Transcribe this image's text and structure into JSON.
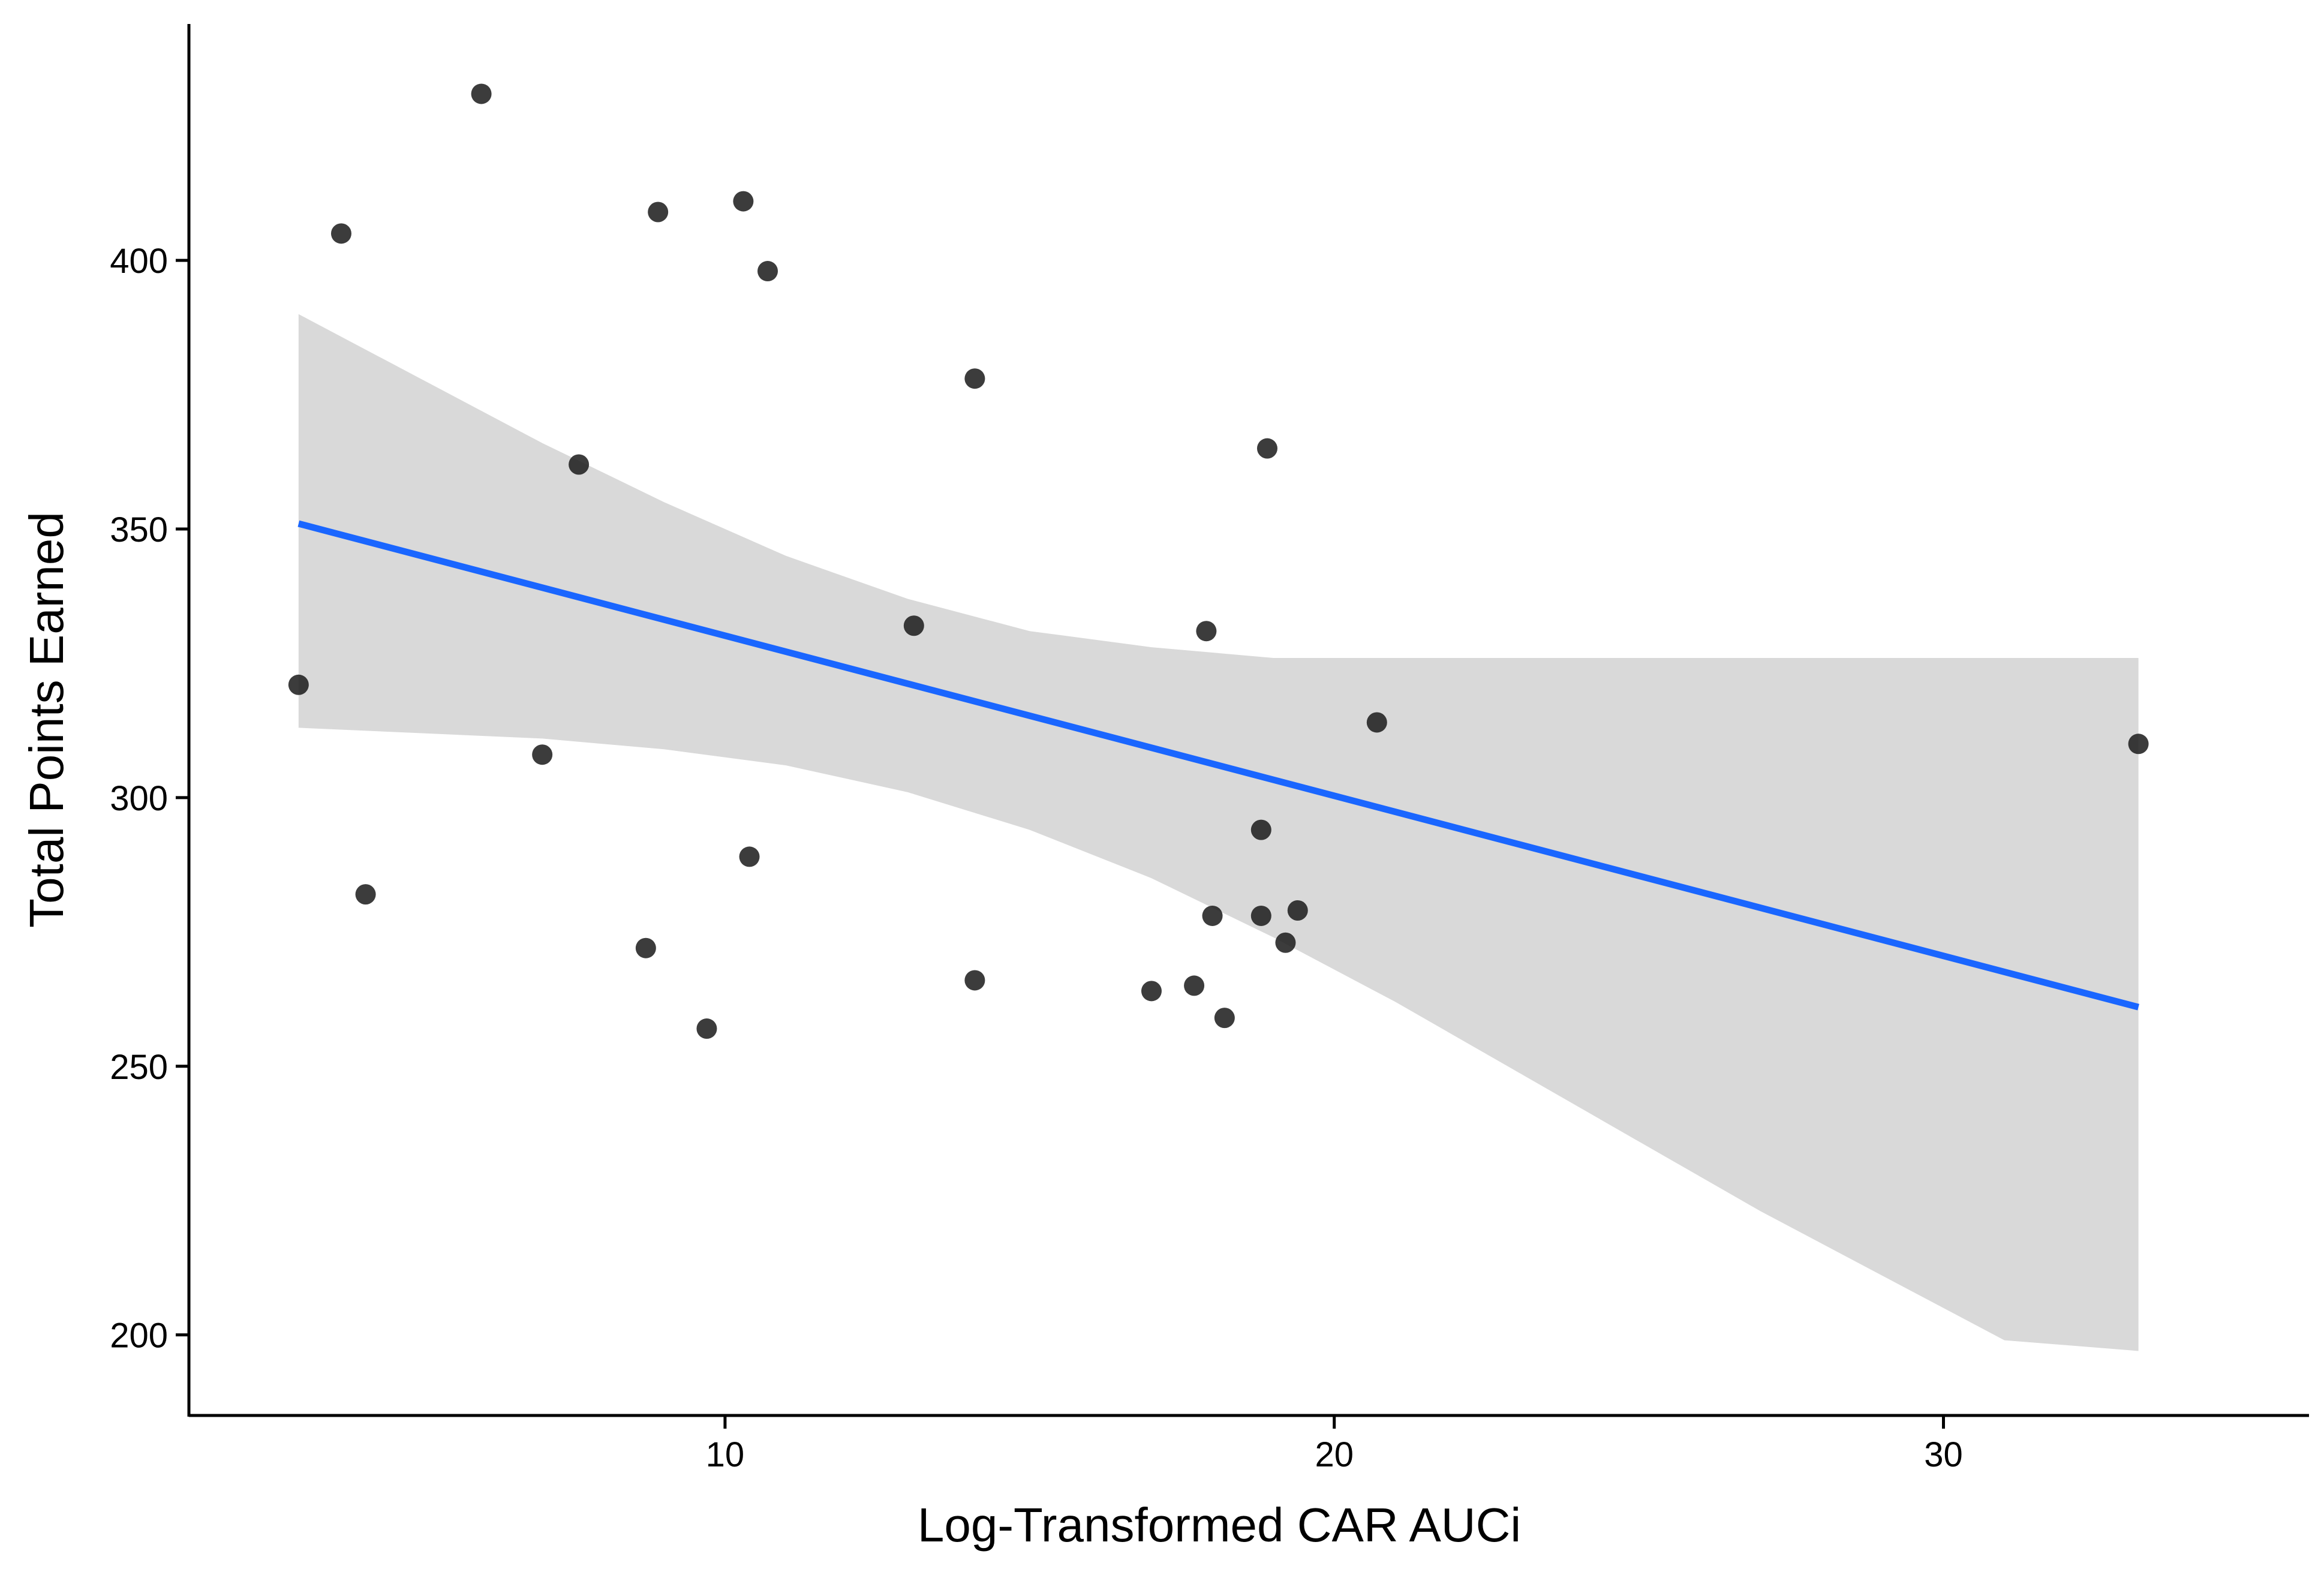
{
  "chart_data": {
    "type": "scatter",
    "title": "",
    "xlabel": "Log-Transformed CAR AUCi",
    "ylabel": "Total Points Earned",
    "xlim": [
      1.2,
      36.0
    ],
    "ylim": [
      185,
      444
    ],
    "xticks": [
      10,
      20,
      30
    ],
    "yticks": [
      200,
      250,
      300,
      350,
      400
    ],
    "grid": false,
    "legend": "none",
    "colors": {
      "points": "#1a1a1a",
      "fit_line": "#1a66ff",
      "confidence_band": "#d9d9d9",
      "axis": "#000000"
    },
    "points": [
      {
        "x": 6.0,
        "y": 431
      },
      {
        "x": 3.7,
        "y": 405
      },
      {
        "x": 8.9,
        "y": 409
      },
      {
        "x": 10.3,
        "y": 411
      },
      {
        "x": 10.7,
        "y": 398
      },
      {
        "x": 14.1,
        "y": 378
      },
      {
        "x": 18.9,
        "y": 365
      },
      {
        "x": 7.6,
        "y": 362
      },
      {
        "x": 13.1,
        "y": 332
      },
      {
        "x": 17.9,
        "y": 331
      },
      {
        "x": 3.0,
        "y": 321
      },
      {
        "x": 20.7,
        "y": 314
      },
      {
        "x": 33.2,
        "y": 310
      },
      {
        "x": 7.0,
        "y": 308
      },
      {
        "x": 18.8,
        "y": 294
      },
      {
        "x": 10.4,
        "y": 289
      },
      {
        "x": 4.1,
        "y": 282
      },
      {
        "x": 19.4,
        "y": 279
      },
      {
        "x": 18.0,
        "y": 278
      },
      {
        "x": 18.8,
        "y": 278
      },
      {
        "x": 19.2,
        "y": 273
      },
      {
        "x": 8.7,
        "y": 272
      },
      {
        "x": 14.1,
        "y": 266
      },
      {
        "x": 17.7,
        "y": 265
      },
      {
        "x": 17.0,
        "y": 264
      },
      {
        "x": 18.2,
        "y": 259
      },
      {
        "x": 9.7,
        "y": 257
      }
    ],
    "fit_line": {
      "x": [
        3.0,
        33.2
      ],
      "y": [
        351,
        261
      ]
    },
    "confidence_band": {
      "x": [
        3.0,
        5.0,
        7.0,
        9.0,
        11.0,
        13.0,
        15.0,
        17.0,
        19.0,
        21.0,
        23.0,
        25.0,
        27.0,
        29.0,
        31.0,
        33.2
      ],
      "upper": [
        390,
        378,
        366,
        355,
        345,
        337,
        331,
        328,
        326,
        326,
        326,
        326,
        326,
        326,
        326,
        326
      ],
      "lower": [
        313,
        312,
        311,
        309,
        306,
        301,
        294,
        285,
        274,
        262,
        249,
        236,
        223,
        211,
        199,
        197
      ]
    }
  }
}
